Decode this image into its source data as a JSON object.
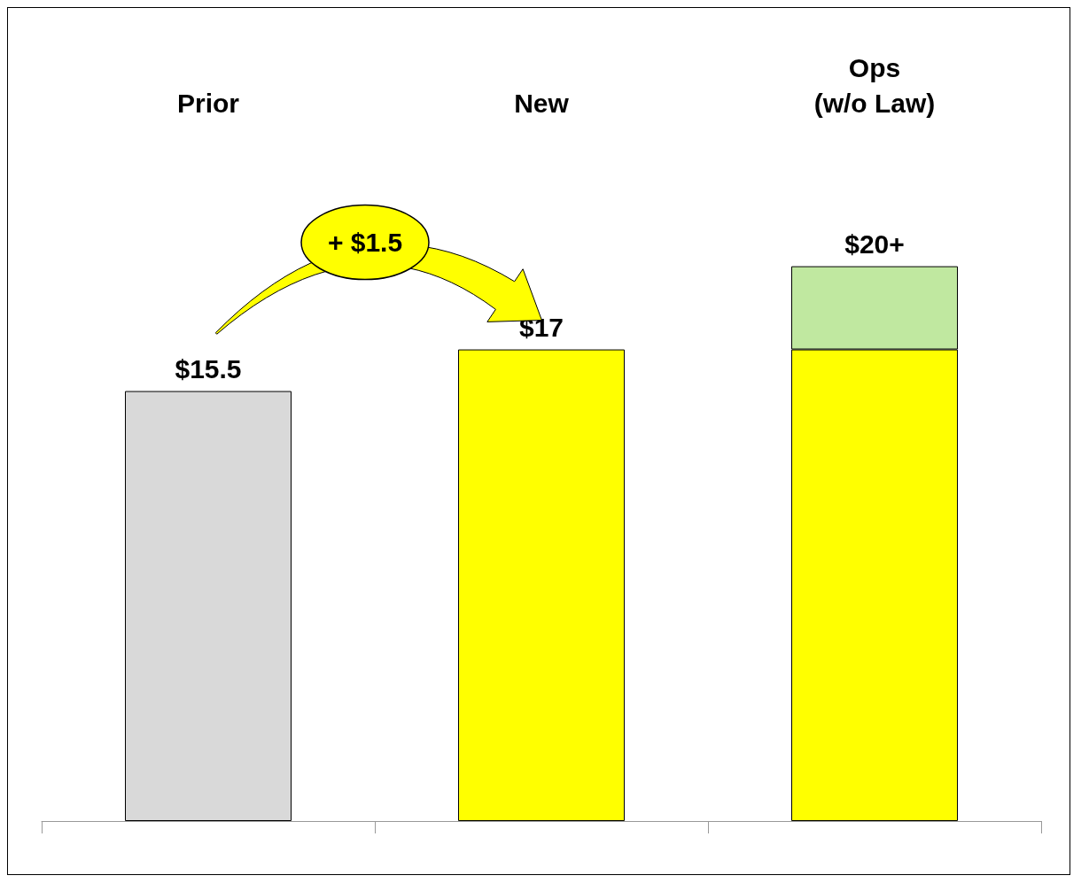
{
  "chart_data": {
    "type": "bar",
    "stacked": true,
    "categories": [
      "Prior",
      "New",
      "Ops\n(w/o Law)"
    ],
    "series": [
      {
        "colors": [
          "#d9d9d9",
          "#ffff00",
          "#ffff00"
        ],
        "values": [
          15.5,
          17,
          17
        ],
        "value_labels": [
          "$15.5",
          "$17",
          null
        ]
      },
      {
        "color": "#c0e8a0",
        "values": [
          null,
          null,
          3
        ],
        "value_labels": [
          null,
          null,
          "$20+"
        ]
      }
    ],
    "annotations": [
      "+ $1.5"
    ]
  }
}
